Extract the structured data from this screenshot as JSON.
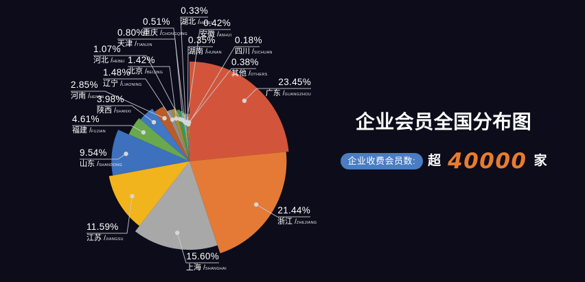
{
  "title": "企业会员全国分布图",
  "badge": {
    "label": "企业收费会员数:",
    "prefix": "超",
    "number": "40000",
    "suffix": "家"
  },
  "colors": {
    "background": "#0d0c1b",
    "badge_pill": "#4a7dc1",
    "accent_orange": "#e87c2d",
    "leader_line": "#c9c9cf",
    "label_dot": "#d6d6d6",
    "label_text": "#ffffff"
  },
  "chart_data": {
    "type": "pie",
    "style": "rose",
    "unit": "%",
    "order": "clockwise-from-top",
    "title": "企业会员全国分布图",
    "legend_position": "none",
    "slices": [
      {
        "name": "广东",
        "pinyin": "GUANGZHOU",
        "value": 23.45,
        "color": "#d2553b"
      },
      {
        "name": "浙江",
        "pinyin": "ZHEJIANG",
        "value": 21.44,
        "color": "#e47a35"
      },
      {
        "name": "上海",
        "pinyin": "SHANGHAI",
        "value": 15.6,
        "color": "#a9a8a8"
      },
      {
        "name": "江苏",
        "pinyin": "JIANGSU",
        "value": 11.59,
        "color": "#f2b41c"
      },
      {
        "name": "山东",
        "pinyin": "SHANDONG",
        "value": 9.54,
        "color": "#3d70bd"
      },
      {
        "name": "福建",
        "pinyin": "FUJIAN",
        "value": 4.61,
        "color": "#69a84d"
      },
      {
        "name": "陕西",
        "pinyin": "SHANXI",
        "value": 3.98,
        "color": "#3f78c4"
      },
      {
        "name": "河南",
        "pinyin": "HENAN",
        "value": 2.85,
        "color": "#bb5b2a"
      },
      {
        "name": "辽宁",
        "pinyin": "LIAONING",
        "value": 1.48,
        "color": "#8f8f8f"
      },
      {
        "name": "北京",
        "pinyin": "BEIJING",
        "value": 1.42,
        "color": "#a68b38"
      },
      {
        "name": "河北",
        "pinyin": "HEBEI",
        "value": 1.07,
        "color": "#53923f"
      },
      {
        "name": "天津",
        "pinyin": "TIANJIN",
        "value": 0.8,
        "color": "#2f9e8e"
      },
      {
        "name": "重庆",
        "pinyin": "CHONGQING",
        "value": 0.51,
        "color": "#dcb52e"
      },
      {
        "name": "湖北",
        "pinyin": "HUBEI",
        "value": 0.33,
        "color": "#98989a"
      },
      {
        "name": "安徽",
        "pinyin": "ANHUI",
        "value": 0.42,
        "color": "#4f83c4"
      },
      {
        "name": "湖南",
        "pinyin": "HUNAN",
        "value": 0.35,
        "color": "#5fa14f"
      },
      {
        "name": "四川",
        "pinyin": "SICHUAN",
        "value": 0.18,
        "color": "#e08a3c"
      },
      {
        "name": "其他",
        "pinyin": "OTHERS",
        "value": 0.38,
        "color": "#d76b43"
      }
    ]
  }
}
